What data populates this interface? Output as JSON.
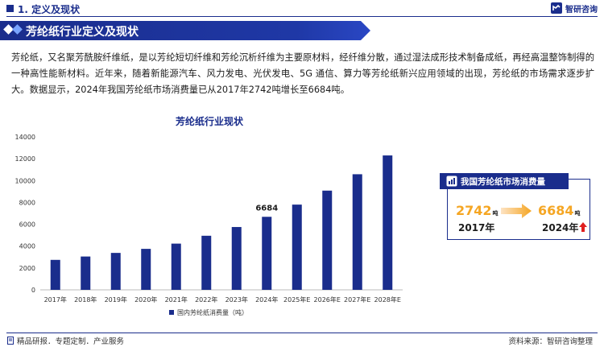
{
  "header": {
    "section_title": "1. 定义及现状",
    "logo_text": "智研咨询"
  },
  "banner": {
    "title": "芳纶纸行业定义及现状"
  },
  "paragraph": "芳纶纸，又名聚芳酰胺纤维纸，是以芳纶短切纤维和芳纶沉析纤维为主要原材料，经纤维分散，通过湿法成形技术制备成纸，再经高温整饰制得的一种高性能新材料。近年来，随着新能源汽车、风力发电、光伏发电、5G 通信、算力等芳纶纸新兴应用领域的出现，芳纶纸的市场需求逐步扩大。数据显示，2024年我国芳纶纸市场消费量已从2017年2742吨增长至6684吨。",
  "chart_data": {
    "type": "bar",
    "title": "芳纶纸行业现状",
    "categories": [
      "2017年",
      "2018年",
      "2019年",
      "2020年",
      "2021年",
      "2022年",
      "2023年",
      "2024年",
      "2025年E",
      "2026年E",
      "2027年E",
      "2028年E"
    ],
    "series": [
      {
        "name": "国内芳纶纸消费量（吨）",
        "values": [
          2742,
          3050,
          3380,
          3750,
          4230,
          4950,
          5750,
          6684,
          7800,
          9080,
          10580,
          12300
        ]
      }
    ],
    "ylim": [
      0,
      14000
    ],
    "yticks": [
      "0",
      "2000",
      "4000",
      "6000",
      "8000",
      "10000",
      "12000",
      "14000"
    ],
    "data_labels": [
      {
        "index": 7,
        "text": "6684"
      }
    ],
    "grid": false,
    "legend": "bottom",
    "bar_color": "#1a2d8c"
  },
  "card": {
    "title": "我国芳纶纸市场消费量",
    "start_value": "2742",
    "start_unit": "吨",
    "start_year": "2017年",
    "end_value": "6684",
    "end_unit": "吨",
    "end_year": "2024年"
  },
  "footer": {
    "left": "精品研报．专题定制．产业服务",
    "right": "资料来源：智研咨询整理"
  },
  "colors": {
    "primary": "#1a2d8c",
    "accent": "#f5a623",
    "up_arrow": "#e02020"
  }
}
